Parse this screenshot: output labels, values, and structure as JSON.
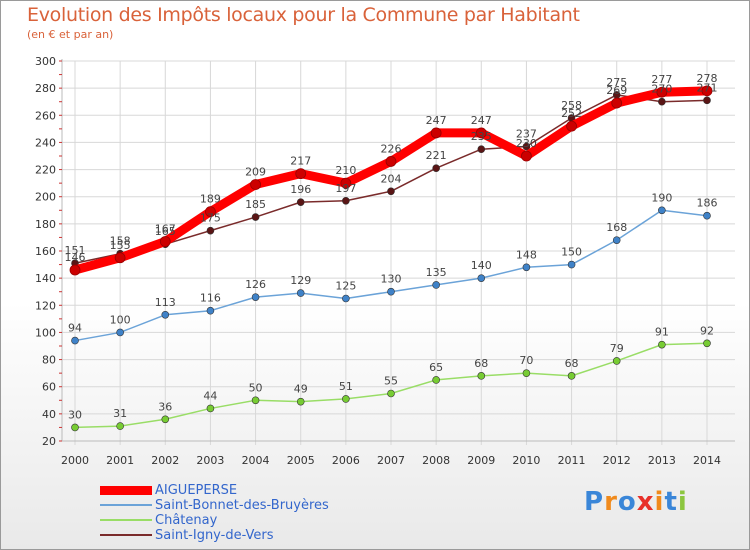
{
  "title": "Evolution des Impôts locaux pour la Commune par Habitant",
  "subtitle": "(en € et par an)",
  "logo_text": "Proxiti",
  "chart_data": {
    "type": "line",
    "title": "Evolution des Impôts locaux pour la Commune par Habitant",
    "ylabel": "(en € et par an)",
    "xlabel": "",
    "ylim": [
      20,
      300
    ],
    "y_ticks": [
      20,
      40,
      60,
      80,
      100,
      120,
      140,
      160,
      180,
      200,
      220,
      240,
      260,
      280,
      300
    ],
    "categories": [
      "2000",
      "2001",
      "2002",
      "2003",
      "2004",
      "2005",
      "2006",
      "2007",
      "2008",
      "2009",
      "2010",
      "2011",
      "2012",
      "2013",
      "2014"
    ],
    "grid": true,
    "legend_position": "bottom-left",
    "series": [
      {
        "name": "AIGUEPERSE",
        "color": "#ff0000",
        "marker": "#cc0000",
        "style": "thick",
        "values": [
          146,
          155,
          167,
          189,
          209,
          217,
          210,
          226,
          247,
          247,
          230,
          252,
          269,
          277,
          278
        ]
      },
      {
        "name": "Saint-Bonnet-des-Bruyères",
        "color": "#6ba3d8",
        "marker": "#3f82c8",
        "style": "thin",
        "values": [
          94,
          100,
          113,
          116,
          126,
          129,
          125,
          130,
          135,
          140,
          148,
          150,
          168,
          190,
          186
        ]
      },
      {
        "name": "Châtenay",
        "color": "#99dd66",
        "marker": "#77cc33",
        "style": "thin",
        "values": [
          30,
          31,
          36,
          44,
          50,
          49,
          51,
          55,
          65,
          68,
          70,
          68,
          79,
          91,
          92
        ]
      },
      {
        "name": "Saint-Igny-de-Vers",
        "color": "#7a2b2b",
        "marker": "#5a1515",
        "style": "thin",
        "values": [
          151,
          158,
          165,
          175,
          185,
          196,
          197,
          204,
          221,
          235,
          237,
          258,
          275,
          270,
          271
        ]
      }
    ]
  }
}
